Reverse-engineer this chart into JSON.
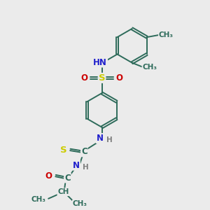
{
  "bg_color": "#ebebeb",
  "bond_color": "#2d6b5a",
  "N_color": "#2020cc",
  "O_color": "#cc0000",
  "S_color": "#cccc00",
  "H_color": "#808080",
  "C_color": "#2d6b5a",
  "figsize": [
    3.0,
    3.0
  ],
  "dpi": 100,
  "xlim": [
    0,
    10
  ],
  "ylim": [
    0,
    10
  ]
}
